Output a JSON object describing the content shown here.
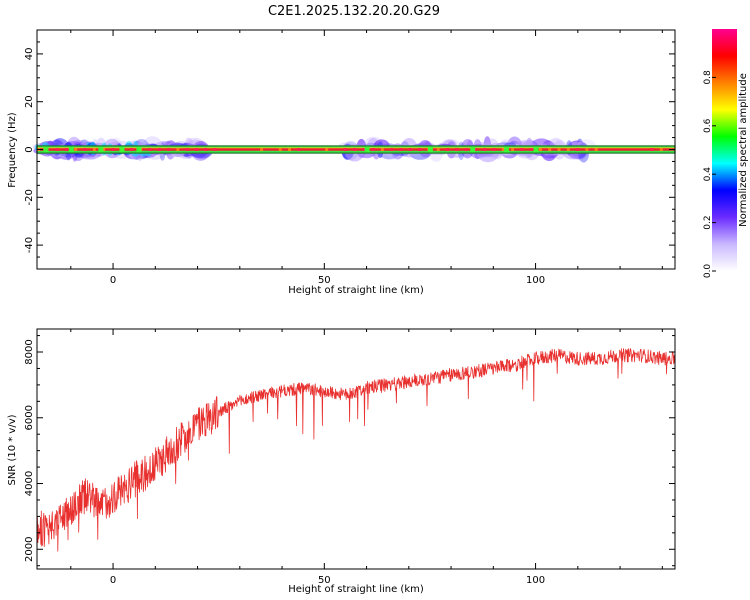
{
  "title": "C2E1.2025.132.20.20.G29",
  "colors": {
    "snr_line": "#e8302e",
    "axes": "#000000",
    "band": "#2e9b2e"
  },
  "chart_data": [
    {
      "type": "heatmap",
      "xlabel": "Height of straight line (km)",
      "ylabel": "Frequency (Hz)",
      "xlim": [
        -18,
        133
      ],
      "ylim": [
        -50,
        50
      ],
      "xticks": [
        0,
        50,
        100
      ],
      "xtick_labels": [
        "0",
        "50",
        "100"
      ],
      "yticks": [
        -40,
        -20,
        0,
        20,
        40
      ],
      "ytick_labels": [
        "-40",
        "-20",
        "0",
        "20",
        "40"
      ],
      "colorbar": {
        "label": "Normalized spectral amplitude",
        "range": [
          0,
          1
        ],
        "ticks": [
          0,
          0.2,
          0.4,
          0.6,
          0.8
        ],
        "tick_labels": [
          "0.0",
          "0.2",
          "0.4",
          "0.6",
          "0.8"
        ],
        "colormap": [
          "#ffffff",
          "#c9b8ff",
          "#6b2bff",
          "#0000ff",
          "#00ffff",
          "#00ff00",
          "#ffff00",
          "#ff8000",
          "#ff0000",
          "#ff0090"
        ]
      },
      "band": {
        "center_hz": 0,
        "half_width_hz": 1.5
      },
      "activity_segments_km": [
        [
          -18,
          22
        ],
        [
          55,
          115
        ]
      ]
    },
    {
      "type": "line",
      "xlabel": "Height of straight line (km)",
      "ylabel": "SNR (10 * v/v)",
      "xlim": [
        -18,
        133
      ],
      "ylim": [
        1400,
        8700
      ],
      "xticks": [
        0,
        50,
        100
      ],
      "xtick_labels": [
        "0",
        "50",
        "100"
      ],
      "yticks": [
        2000,
        4000,
        6000,
        8000
      ],
      "ytick_labels": [
        "2000",
        "4000",
        "6000",
        "8000"
      ],
      "series": [
        {
          "x": [
            -18,
            -15,
            -12,
            -9,
            -6,
            -3,
            0,
            3,
            6,
            9,
            12,
            15,
            18,
            21,
            24,
            27,
            30,
            35,
            40,
            45,
            50,
            55,
            60,
            65,
            70,
            75,
            80,
            85,
            90,
            95,
            100,
            105,
            110,
            115,
            120,
            125,
            130,
            133
          ],
          "y": [
            2700,
            2500,
            3000,
            3400,
            3700,
            3300,
            3600,
            3900,
            4200,
            4400,
            4800,
            5200,
            5600,
            5900,
            6100,
            6300,
            6500,
            6700,
            6800,
            6900,
            6800,
            6700,
            6900,
            7000,
            7100,
            7200,
            7300,
            7400,
            7500,
            7600,
            7800,
            7900,
            7800,
            7800,
            7900,
            7900,
            7800,
            7800
          ]
        }
      ]
    }
  ]
}
